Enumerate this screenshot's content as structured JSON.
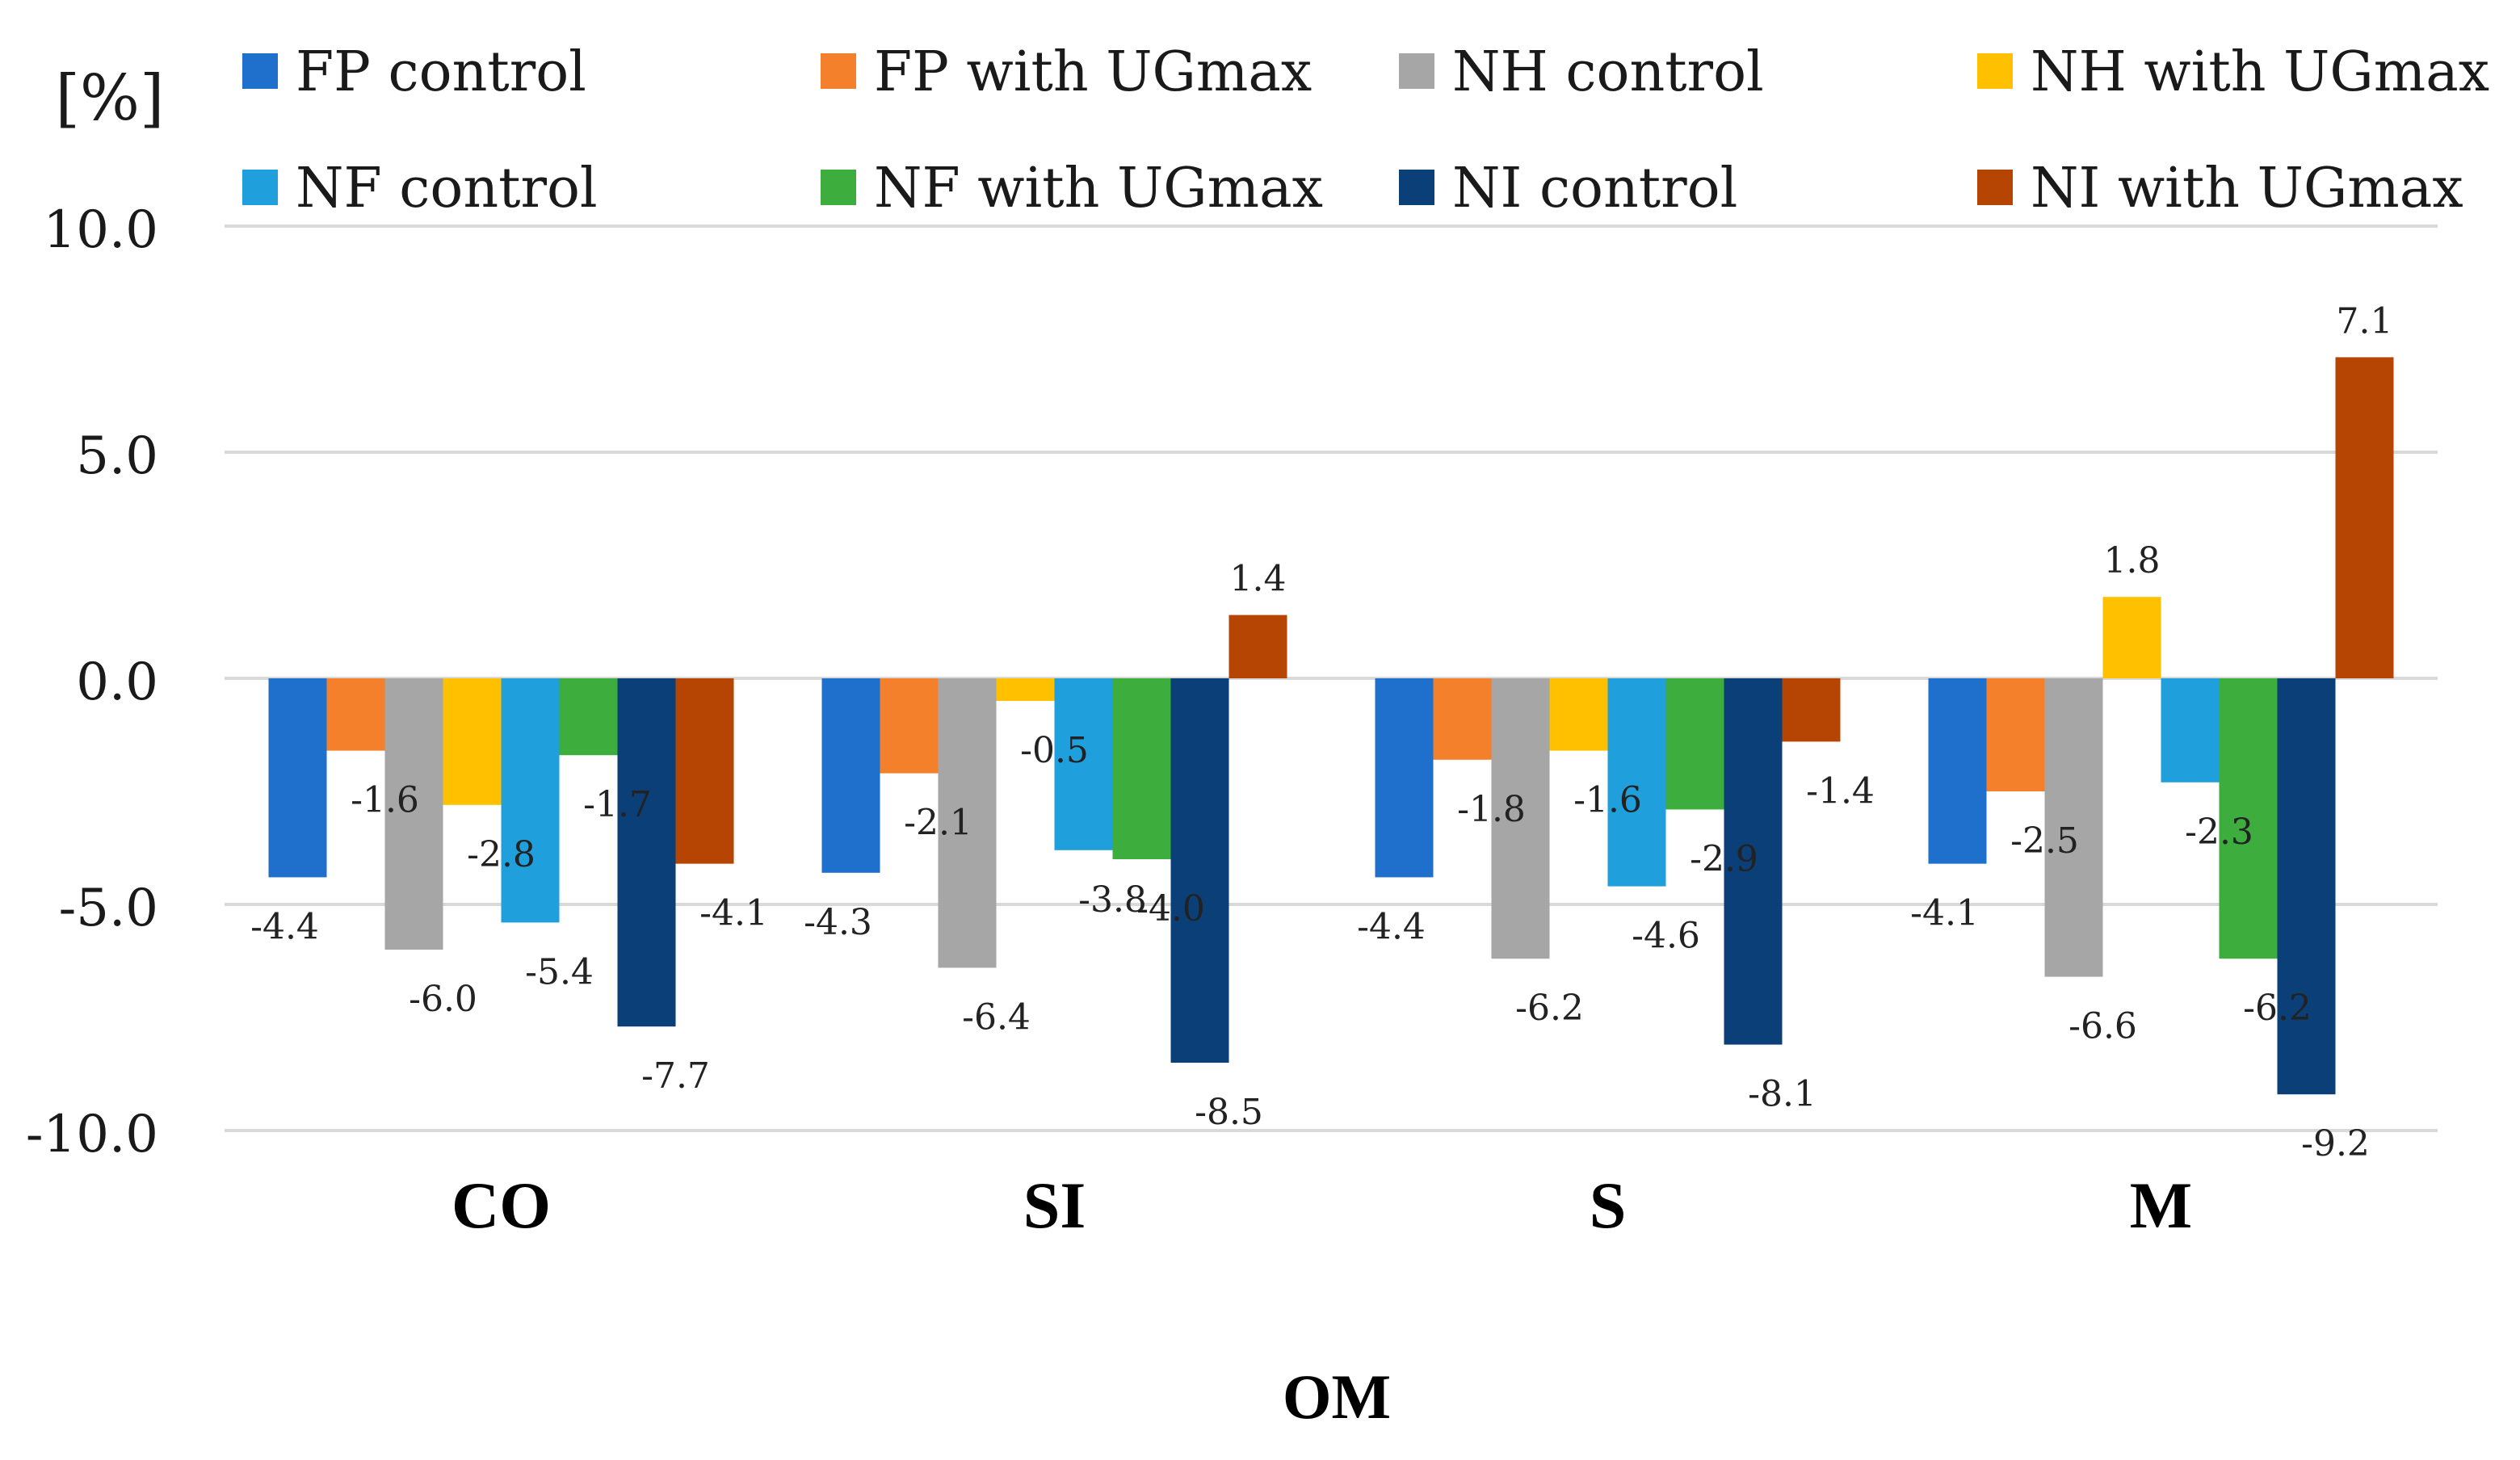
{
  "chart_data": {
    "type": "bar",
    "title": "",
    "xlabel": "OM",
    "ylabel": "[%]",
    "ylim": [
      -10,
      10
    ],
    "yticks": [
      10,
      5,
      0,
      -5,
      -10
    ],
    "ytick_labels": [
      "10.0",
      "5.0",
      "0.0",
      "-5.0",
      "-10.0"
    ],
    "grid": true,
    "legend_position": "top",
    "categories": [
      "CO",
      "SI",
      "S",
      "M"
    ],
    "series": [
      {
        "name": "FP control",
        "color": "#1f6fcd",
        "values": [
          -4.4,
          -4.3,
          -4.4,
          -4.1
        ]
      },
      {
        "name": "FP with UGmax",
        "color": "#f4802b",
        "values": [
          -1.6,
          -2.1,
          -1.8,
          -2.5
        ]
      },
      {
        "name": "NH control",
        "color": "#a6a6a6",
        "values": [
          -6.0,
          -6.4,
          -6.2,
          -6.6
        ]
      },
      {
        "name": "NH with UGmax",
        "color": "#ffc000",
        "values": [
          -2.8,
          -0.5,
          -1.6,
          1.8
        ]
      },
      {
        "name": "NF control",
        "color": "#1fa0dc",
        "values": [
          -5.4,
          -3.8,
          -4.6,
          -2.3
        ]
      },
      {
        "name": "NF with UGmax",
        "color": "#3dad3d",
        "values": [
          -1.7,
          -4.0,
          -2.9,
          -6.2
        ]
      },
      {
        "name": "NI control",
        "color": "#0b3f77",
        "values": [
          -7.7,
          -8.5,
          -8.1,
          -9.2
        ]
      },
      {
        "name": "NI with UGmax",
        "color": "#b64402",
        "values": [
          -4.1,
          1.4,
          -1.4,
          7.1
        ]
      }
    ]
  }
}
